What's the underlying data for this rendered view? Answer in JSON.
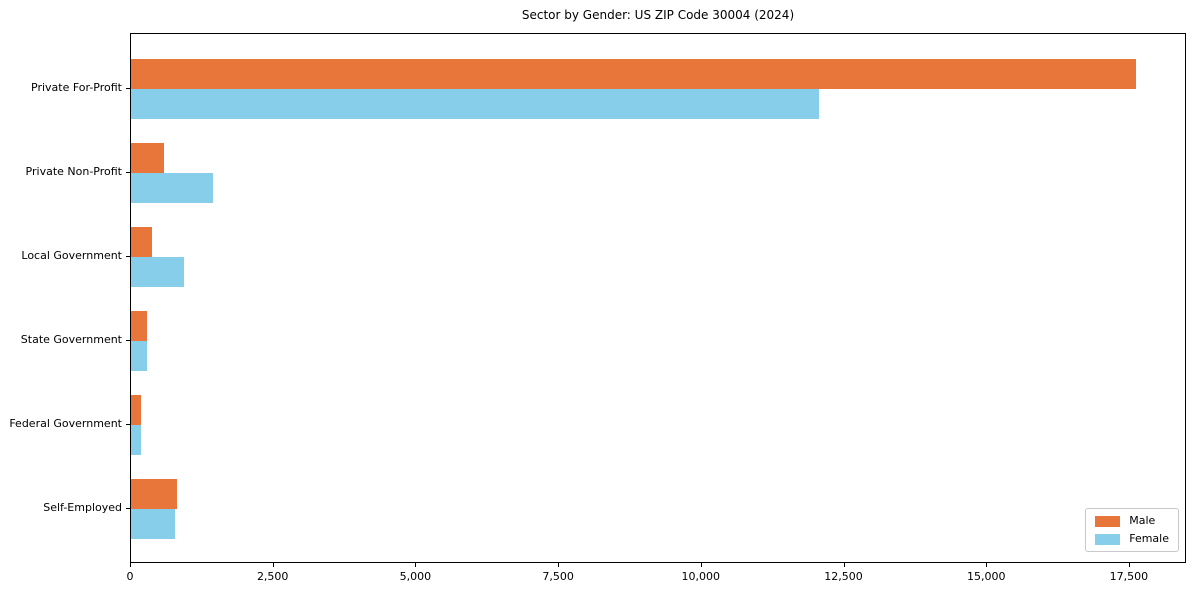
{
  "title": "Sector by Gender: US ZIP Code 30004 (2024)",
  "colors": {
    "male": "#e8763b",
    "female": "#87ceeb",
    "axis": "#000000",
    "legend_border": "#c9c9c9",
    "background": "#ffffff"
  },
  "chart_data": {
    "type": "bar",
    "orientation": "horizontal",
    "title": "Sector by Gender: US ZIP Code 30004 (2024)",
    "xlabel": "",
    "ylabel": "",
    "categories": [
      "Private For-Profit",
      "Private Non-Profit",
      "Local Government",
      "State Government",
      "Federal Government",
      "Self-Employed"
    ],
    "series": [
      {
        "name": "Male",
        "color": "#e8763b",
        "values": [
          17600,
          575,
          370,
          285,
          180,
          800
        ]
      },
      {
        "name": "Female",
        "color": "#87ceeb",
        "values": [
          12050,
          1440,
          930,
          275,
          170,
          775
        ]
      }
    ],
    "xlim": [
      0,
      18500
    ],
    "xticks": [
      0,
      2500,
      5000,
      7500,
      10000,
      12500,
      15000,
      17500
    ],
    "xtick_labels": [
      "0",
      "2,500",
      "5,000",
      "7,500",
      "10,000",
      "12,500",
      "15,000",
      "17,500"
    ],
    "grid": false,
    "legend": {
      "position": "lower right",
      "entries": [
        "Male",
        "Female"
      ]
    }
  }
}
